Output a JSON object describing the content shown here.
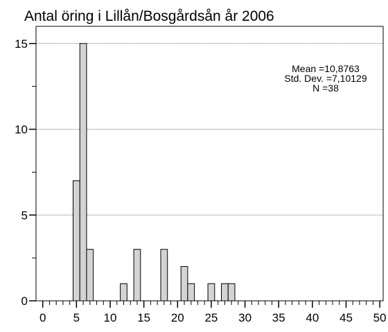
{
  "chart_data": {
    "type": "histogram",
    "title": "Antal öring i Lillån/Bosgårdsån år 2006",
    "bins": [
      4.5,
      5.5,
      6.5,
      7.5,
      8.5,
      9.5,
      10.5,
      11.5,
      12.5,
      13.5,
      14.5,
      15.5,
      16.5,
      17.5,
      18.5,
      19.5,
      20.5,
      21.5,
      22.5,
      23.5,
      24.5,
      25.5,
      26.5,
      27.5,
      28.5
    ],
    "values": [
      7,
      15,
      3,
      0,
      0,
      0,
      0,
      1,
      0,
      3,
      0,
      0,
      0,
      3,
      0,
      0,
      2,
      1,
      0,
      0,
      1,
      0,
      1,
      1
    ],
    "color": "#d3d3d3",
    "xlim": [
      -1,
      50.5
    ],
    "xticks": [
      0,
      5,
      10,
      15,
      20,
      25,
      30,
      35,
      40,
      45,
      50
    ],
    "ylim": [
      0,
      16
    ],
    "yticks": [
      0,
      5,
      10,
      15
    ],
    "grid": true,
    "annotations": [
      "Mean =10,8763",
      "Std. Dev. =7,10129",
      "N =38"
    ]
  }
}
